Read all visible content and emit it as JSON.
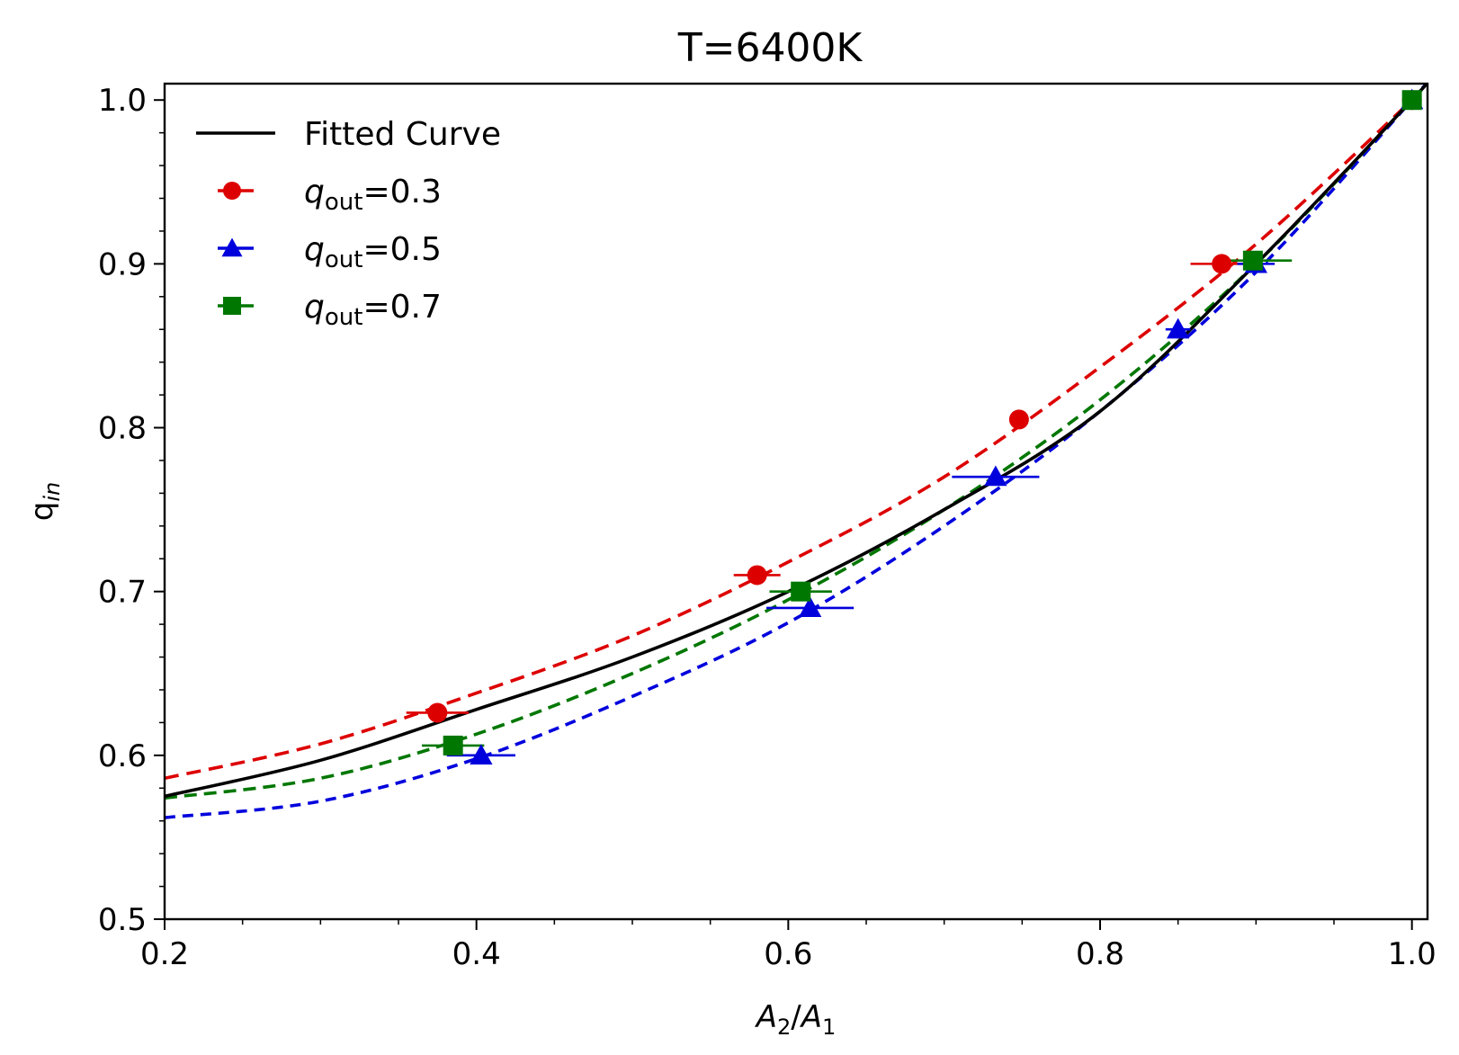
{
  "chart_data": {
    "type": "line",
    "title": "T=6400K",
    "xlabel_parts": [
      "A",
      "2",
      "/",
      "A",
      "1"
    ],
    "ylabel_parts": [
      "q",
      "in"
    ],
    "xlim": [
      0.2,
      1.01
    ],
    "ylim": [
      0.5,
      1.01
    ],
    "x_ticks": [
      {
        "value": 0.2,
        "label": "0.2"
      },
      {
        "value": 0.4,
        "label": "0.4"
      },
      {
        "value": 0.6,
        "label": "0.6"
      },
      {
        "value": 0.8,
        "label": "0.8"
      },
      {
        "value": 1.0,
        "label": "1.0"
      }
    ],
    "y_ticks": [
      {
        "value": 0.5,
        "label": "0.5"
      },
      {
        "value": 0.6,
        "label": "0.6"
      },
      {
        "value": 0.7,
        "label": "0.7"
      },
      {
        "value": 0.8,
        "label": "0.8"
      },
      {
        "value": 0.9,
        "label": "0.9"
      },
      {
        "value": 1.0,
        "label": "1.0"
      }
    ],
    "legend_placement": "top-left",
    "grid": false,
    "fitted_curve": {
      "name": "Fitted Curve",
      "color": "#000000",
      "x": [
        0.2,
        0.3,
        0.4,
        0.5,
        0.6,
        0.7,
        0.8,
        0.9,
        1.0,
        1.01
      ],
      "y": [
        0.575,
        0.597,
        0.628,
        0.66,
        0.7,
        0.75,
        0.81,
        0.9,
        1.0,
        1.012
      ]
    },
    "series": [
      {
        "name_var": "q",
        "name_sub": "out",
        "name_value": "=0.3",
        "color": "#dd0000",
        "marker": "circle",
        "points": [
          {
            "x": 0.375,
            "y": 0.626,
            "xerr": 0.02
          },
          {
            "x": 0.58,
            "y": 0.71,
            "xerr": 0.015
          },
          {
            "x": 0.748,
            "y": 0.805,
            "xerr": 0.0
          },
          {
            "x": 0.878,
            "y": 0.9,
            "xerr": 0.02
          },
          {
            "x": 1.0,
            "y": 1.0,
            "xerr": 0.0
          }
        ],
        "fit_x": [
          0.2,
          0.3,
          0.4,
          0.5,
          0.6,
          0.7,
          0.8,
          0.9,
          1.0,
          1.01
        ],
        "fit_y": [
          0.586,
          0.607,
          0.638,
          0.673,
          0.718,
          0.77,
          0.837,
          0.912,
          1.0,
          1.01
        ]
      },
      {
        "name_var": "q",
        "name_sub": "out",
        "name_value": "=0.5",
        "color": "#0000dd",
        "marker": "triangle",
        "points": [
          {
            "x": 0.403,
            "y": 0.6,
            "xerr": 0.022
          },
          {
            "x": 0.614,
            "y": 0.69,
            "xerr": 0.028
          },
          {
            "x": 0.733,
            "y": 0.77,
            "xerr": 0.028
          },
          {
            "x": 0.85,
            "y": 0.86,
            "xerr": 0.008
          },
          {
            "x": 0.9,
            "y": 0.9,
            "xerr": 0.012
          },
          {
            "x": 1.0,
            "y": 1.0,
            "xerr": 0.0
          }
        ],
        "fit_x": [
          0.2,
          0.3,
          0.4,
          0.5,
          0.6,
          0.7,
          0.8,
          0.9,
          1.0,
          1.01
        ],
        "fit_y": [
          0.562,
          0.572,
          0.598,
          0.636,
          0.681,
          0.74,
          0.81,
          0.895,
          1.0,
          1.012
        ]
      },
      {
        "name_var": "q",
        "name_sub": "out",
        "name_value": "=0.7",
        "color": "#007700",
        "marker": "square",
        "points": [
          {
            "x": 0.385,
            "y": 0.606,
            "xerr": 0.02
          },
          {
            "x": 0.608,
            "y": 0.7,
            "xerr": 0.02
          },
          {
            "x": 0.898,
            "y": 0.902,
            "xerr": 0.025
          },
          {
            "x": 1.0,
            "y": 1.0,
            "xerr": 0.0
          }
        ],
        "fit_x": [
          0.2,
          0.3,
          0.4,
          0.5,
          0.6,
          0.7,
          0.8,
          0.9,
          1.0,
          1.01
        ],
        "fit_y": [
          0.574,
          0.586,
          0.613,
          0.65,
          0.695,
          0.75,
          0.817,
          0.9,
          1.0,
          1.01
        ]
      }
    ]
  }
}
